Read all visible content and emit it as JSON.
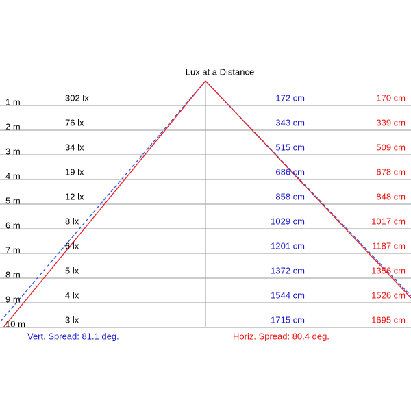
{
  "title": "Lux at a Distance",
  "rows": [
    {
      "distance": "1 m",
      "lux": "302 lx",
      "vertical": "172 cm",
      "horizontal": "170 cm"
    },
    {
      "distance": "2 m",
      "lux": "76 lx",
      "vertical": "343 cm",
      "horizontal": "339 cm"
    },
    {
      "distance": "3 m",
      "lux": "34 lx",
      "vertical": "515 cm",
      "horizontal": "509 cm"
    },
    {
      "distance": "4 m",
      "lux": "19 lx",
      "vertical": "686 cm",
      "horizontal": "678 cm"
    },
    {
      "distance": "5 m",
      "lux": "12 lx",
      "vertical": "858 cm",
      "horizontal": "848 cm"
    },
    {
      "distance": "6 m",
      "lux": "8 lx",
      "vertical": "1029 cm",
      "horizontal": "1017 cm"
    },
    {
      "distance": "7 m",
      "lux": "6 lx",
      "vertical": "1201 cm",
      "horizontal": "1187 cm"
    },
    {
      "distance": "8 m",
      "lux": "5 lx",
      "vertical": "1372 cm",
      "horizontal": "1356 cm"
    },
    {
      "distance": "9 m",
      "lux": "4 lx",
      "vertical": "1544 cm",
      "horizontal": "1526 cm"
    },
    {
      "distance": "10 m",
      "lux": "3 lx",
      "vertical": "1715 cm",
      "horizontal": "1695 cm"
    }
  ],
  "vertical_spread": "Vert. Spread: 81.1 deg.",
  "horizontal_spread": "Horiz. Spread: 80.4 deg."
}
